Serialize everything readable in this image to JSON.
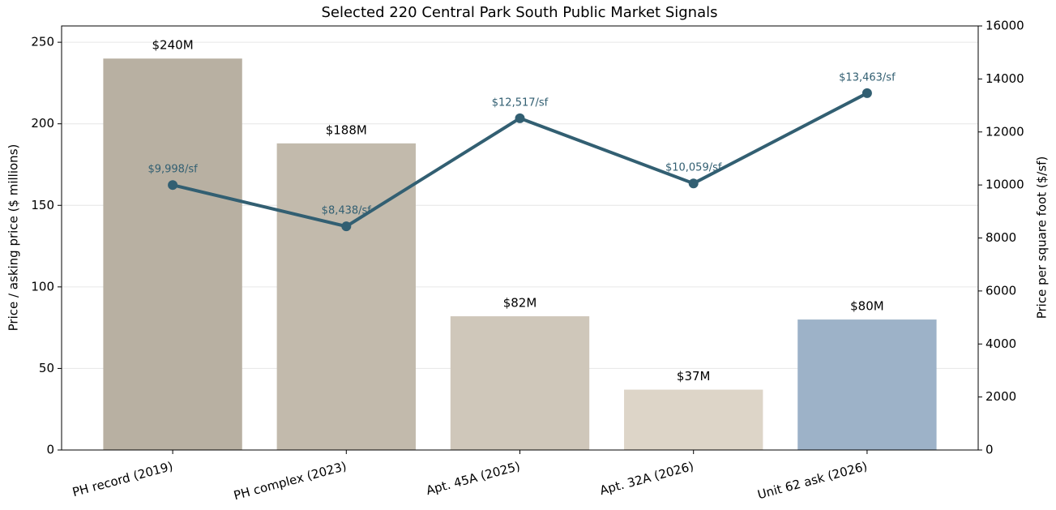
{
  "chart_data": {
    "type": "bar",
    "title": "Selected 220 Central Park South Public Market Signals",
    "ylabel": "Price / asking price ($ millions)",
    "y2label": "Price per square foot ($/sf)",
    "categories": [
      "PH record (2019)",
      "PH complex (2023)",
      "Apt. 45A (2025)",
      "Apt. 32A (2026)",
      "Unit 62 ask (2026)"
    ],
    "series": [
      {
        "type": "bar",
        "colors": [
          "#b8b0a2",
          "#c2baac",
          "#cfc7ba",
          "#ddd5c8",
          "#9db2c8"
        ],
        "values": [
          240,
          188,
          82,
          37,
          80
        ],
        "value_labels": [
          "$240M",
          "$188M",
          "$82M",
          "$37M",
          "$80M"
        ]
      },
      {
        "type": "line",
        "axis": "y2",
        "color": "#325f72",
        "values": [
          9998,
          8438,
          12517,
          10059,
          13463
        ],
        "value_labels": [
          "$9,998/sf",
          "$8,438/sf",
          "$12,517/sf",
          "$10,059/sf",
          "$13,463/sf"
        ]
      }
    ],
    "ylim": [
      0,
      260
    ],
    "yticks": [
      0,
      50,
      100,
      150,
      200,
      250
    ],
    "y2lim": [
      0,
      16000
    ],
    "y2ticks": [
      0,
      2000,
      4000,
      6000,
      8000,
      10000,
      12000,
      14000,
      16000
    ],
    "grid": true
  }
}
